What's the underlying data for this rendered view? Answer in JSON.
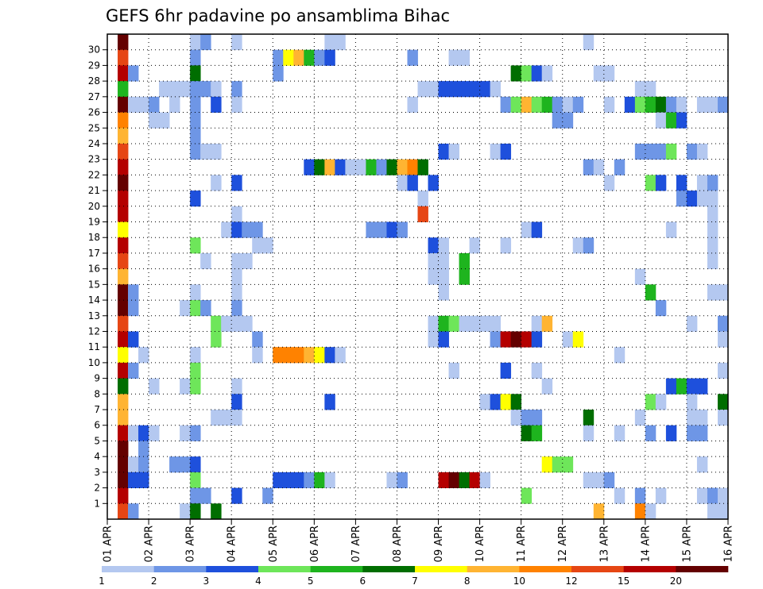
{
  "chart_data": {
    "type": "heatmap",
    "title": "GEFS 6hr padavine po ansamblima Bihac",
    "x_tick_labels": [
      "01 APR",
      "02 APR",
      "03 APR",
      "04 APR",
      "05 APR",
      "06 APR",
      "07 APR",
      "08 APR",
      "09 APR",
      "10 APR",
      "11 APR",
      "12 APR",
      "13 APR",
      "14 APR",
      "15 APR",
      "16 APR"
    ],
    "x_steps": 60,
    "y_ticks": [
      1,
      2,
      3,
      4,
      5,
      6,
      7,
      8,
      9,
      10,
      11,
      12,
      13,
      14,
      15,
      16,
      17,
      18,
      19,
      20,
      21,
      22,
      23,
      24,
      25,
      26,
      27,
      28,
      29,
      30
    ],
    "grid": true,
    "colorbar": {
      "colors": [
        "#b4c8f0",
        "#6e96e6",
        "#1e50dc",
        "#6ee65a",
        "#1eb41e",
        "#006e00",
        "#ffff00",
        "#ffb432",
        "#ff8200",
        "#e64614",
        "#b40000",
        "#640000"
      ],
      "labels": [
        "1",
        "2",
        "3",
        "4",
        "5",
        "6",
        "7",
        "8",
        "10",
        "12",
        "15",
        "20"
      ]
    },
    "data_cells": [
      [
        1,
        30,
        11
      ],
      [
        1,
        29,
        9
      ],
      [
        1,
        28,
        10
      ],
      [
        1,
        27,
        4
      ],
      [
        1,
        26,
        11
      ],
      [
        1,
        25,
        8
      ],
      [
        1,
        24,
        7
      ],
      [
        1,
        23,
        9
      ],
      [
        1,
        22,
        10
      ],
      [
        1,
        21,
        11
      ],
      [
        1,
        20,
        10
      ],
      [
        1,
        19,
        10
      ],
      [
        1,
        18,
        6
      ],
      [
        1,
        17,
        10
      ],
      [
        1,
        16,
        9
      ],
      [
        1,
        15,
        7
      ],
      [
        1,
        14,
        11
      ],
      [
        1,
        13,
        11
      ],
      [
        1,
        12,
        9
      ],
      [
        1,
        11,
        10
      ],
      [
        1,
        10,
        6
      ],
      [
        1,
        9,
        10
      ],
      [
        1,
        8,
        5
      ],
      [
        1,
        7,
        7
      ],
      [
        1,
        6,
        7
      ],
      [
        1,
        5,
        10
      ],
      [
        1,
        4,
        11
      ],
      [
        1,
        3,
        11
      ],
      [
        1,
        2,
        11
      ],
      [
        1,
        1,
        10
      ],
      [
        1,
        0,
        9
      ],
      [
        2,
        28,
        1
      ],
      [
        2,
        26,
        0
      ],
      [
        2,
        14,
        1
      ],
      [
        2,
        13,
        1
      ],
      [
        2,
        11,
        2
      ],
      [
        2,
        9,
        1
      ],
      [
        2,
        5,
        0
      ],
      [
        2,
        3,
        0
      ],
      [
        2,
        2,
        2
      ],
      [
        2,
        0,
        1
      ],
      [
        3,
        26,
        0
      ],
      [
        3,
        10,
        0
      ],
      [
        3,
        5,
        2
      ],
      [
        3,
        4,
        1
      ],
      [
        3,
        3,
        1
      ],
      [
        3,
        2,
        2
      ],
      [
        4,
        26,
        1
      ],
      [
        4,
        25,
        0
      ],
      [
        4,
        8,
        0
      ],
      [
        4,
        5,
        0
      ],
      [
        5,
        27,
        0
      ],
      [
        5,
        25,
        0
      ],
      [
        6,
        27,
        0
      ],
      [
        6,
        26,
        0
      ],
      [
        6,
        3,
        1
      ],
      [
        7,
        27,
        0
      ],
      [
        7,
        13,
        0
      ],
      [
        7,
        8,
        0
      ],
      [
        7,
        5,
        0
      ],
      [
        7,
        3,
        1
      ],
      [
        7,
        0,
        0
      ],
      [
        8,
        30,
        0
      ],
      [
        8,
        29,
        1
      ],
      [
        8,
        28,
        5
      ],
      [
        8,
        27,
        1
      ],
      [
        8,
        26,
        1
      ],
      [
        8,
        25,
        1
      ],
      [
        8,
        24,
        1
      ],
      [
        8,
        23,
        1
      ],
      [
        8,
        20,
        2
      ],
      [
        8,
        17,
        3
      ],
      [
        8,
        14,
        0
      ],
      [
        8,
        13,
        3
      ],
      [
        8,
        10,
        0
      ],
      [
        8,
        9,
        3
      ],
      [
        8,
        8,
        3
      ],
      [
        8,
        5,
        1
      ],
      [
        8,
        3,
        2
      ],
      [
        8,
        2,
        3
      ],
      [
        8,
        1,
        1
      ],
      [
        8,
        0,
        5
      ],
      [
        9,
        30,
        1
      ],
      [
        9,
        27,
        1
      ],
      [
        9,
        23,
        0
      ],
      [
        9,
        16,
        0
      ],
      [
        9,
        13,
        1
      ],
      [
        9,
        1,
        1
      ],
      [
        10,
        27,
        0
      ],
      [
        10,
        26,
        2
      ],
      [
        10,
        23,
        0
      ],
      [
        10,
        21,
        0
      ],
      [
        10,
        12,
        3
      ],
      [
        10,
        11,
        3
      ],
      [
        10,
        6,
        0
      ],
      [
        10,
        0,
        5
      ],
      [
        11,
        18,
        0
      ],
      [
        11,
        12,
        0
      ],
      [
        11,
        6,
        0
      ],
      [
        12,
        30,
        0
      ],
      [
        12,
        27,
        1
      ],
      [
        12,
        26,
        0
      ],
      [
        12,
        21,
        2
      ],
      [
        12,
        19,
        0
      ],
      [
        12,
        18,
        2
      ],
      [
        12,
        16,
        0
      ],
      [
        12,
        15,
        0
      ],
      [
        12,
        14,
        0
      ],
      [
        12,
        13,
        1
      ],
      [
        12,
        12,
        0
      ],
      [
        12,
        8,
        0
      ],
      [
        12,
        7,
        2
      ],
      [
        12,
        6,
        0
      ],
      [
        12,
        1,
        2
      ],
      [
        13,
        18,
        1
      ],
      [
        13,
        16,
        0
      ],
      [
        13,
        12,
        0
      ],
      [
        14,
        18,
        1
      ],
      [
        14,
        17,
        0
      ],
      [
        14,
        11,
        1
      ],
      [
        14,
        10,
        0
      ],
      [
        15,
        17,
        0
      ],
      [
        15,
        1,
        1
      ],
      [
        16,
        29,
        1
      ],
      [
        16,
        28,
        1
      ],
      [
        16,
        10,
        8
      ],
      [
        16,
        2,
        2
      ],
      [
        17,
        29,
        6
      ],
      [
        17,
        10,
        8
      ],
      [
        17,
        2,
        2
      ],
      [
        18,
        29,
        7
      ],
      [
        18,
        10,
        8
      ],
      [
        18,
        2,
        2
      ],
      [
        19,
        29,
        4
      ],
      [
        19,
        22,
        2
      ],
      [
        19,
        10,
        7
      ],
      [
        19,
        2,
        1
      ],
      [
        20,
        29,
        1
      ],
      [
        20,
        22,
        5
      ],
      [
        20,
        10,
        6
      ],
      [
        20,
        2,
        4
      ],
      [
        21,
        30,
        0
      ],
      [
        21,
        29,
        2
      ],
      [
        21,
        22,
        7
      ],
      [
        21,
        10,
        2
      ],
      [
        21,
        7,
        2
      ],
      [
        21,
        2,
        0
      ],
      [
        22,
        30,
        0
      ],
      [
        22,
        22,
        2
      ],
      [
        22,
        10,
        0
      ],
      [
        23,
        22,
        0
      ],
      [
        24,
        22,
        0
      ],
      [
        25,
        22,
        4
      ],
      [
        25,
        18,
        1
      ],
      [
        26,
        22,
        1
      ],
      [
        26,
        18,
        1
      ],
      [
        27,
        22,
        5
      ],
      [
        27,
        18,
        2
      ],
      [
        27,
        2,
        0
      ],
      [
        28,
        22,
        7
      ],
      [
        28,
        21,
        0
      ],
      [
        28,
        18,
        1
      ],
      [
        28,
        2,
        1
      ],
      [
        29,
        29,
        1
      ],
      [
        29,
        26,
        0
      ],
      [
        29,
        22,
        8
      ],
      [
        29,
        21,
        2
      ],
      [
        30,
        27,
        0
      ],
      [
        30,
        22,
        5
      ],
      [
        30,
        20,
        0
      ],
      [
        30,
        19,
        9
      ],
      [
        31,
        27,
        0
      ],
      [
        31,
        21,
        2
      ],
      [
        31,
        17,
        2
      ],
      [
        31,
        16,
        0
      ],
      [
        31,
        15,
        0
      ],
      [
        31,
        12,
        0
      ],
      [
        31,
        11,
        0
      ],
      [
        32,
        27,
        2
      ],
      [
        32,
        23,
        2
      ],
      [
        32,
        17,
        0
      ],
      [
        32,
        16,
        0
      ],
      [
        32,
        15,
        0
      ],
      [
        32,
        14,
        0
      ],
      [
        32,
        12,
        4
      ],
      [
        32,
        11,
        2
      ],
      [
        32,
        2,
        10
      ],
      [
        33,
        29,
        0
      ],
      [
        33,
        27,
        2
      ],
      [
        33,
        23,
        0
      ],
      [
        33,
        12,
        3
      ],
      [
        33,
        9,
        0
      ],
      [
        33,
        2,
        11
      ],
      [
        34,
        29,
        0
      ],
      [
        34,
        27,
        2
      ],
      [
        34,
        16,
        4
      ],
      [
        34,
        15,
        4
      ],
      [
        34,
        12,
        0
      ],
      [
        34,
        2,
        5
      ],
      [
        35,
        27,
        2
      ],
      [
        35,
        17,
        0
      ],
      [
        35,
        12,
        0
      ],
      [
        35,
        2,
        10
      ],
      [
        36,
        27,
        2
      ],
      [
        36,
        12,
        0
      ],
      [
        36,
        7,
        0
      ],
      [
        36,
        2,
        0
      ],
      [
        37,
        27,
        0
      ],
      [
        37,
        23,
        0
      ],
      [
        37,
        12,
        0
      ],
      [
        37,
        11,
        1
      ],
      [
        37,
        7,
        2
      ],
      [
        38,
        26,
        1
      ],
      [
        38,
        23,
        2
      ],
      [
        38,
        17,
        0
      ],
      [
        38,
        11,
        10
      ],
      [
        38,
        9,
        2
      ],
      [
        38,
        7,
        6
      ],
      [
        39,
        28,
        5
      ],
      [
        39,
        26,
        3
      ],
      [
        39,
        11,
        11
      ],
      [
        39,
        7,
        5
      ],
      [
        39,
        6,
        0
      ],
      [
        40,
        28,
        3
      ],
      [
        40,
        26,
        7
      ],
      [
        40,
        18,
        0
      ],
      [
        40,
        11,
        10
      ],
      [
        40,
        6,
        1
      ],
      [
        40,
        5,
        5
      ],
      [
        40,
        1,
        3
      ],
      [
        41,
        28,
        2
      ],
      [
        41,
        26,
        3
      ],
      [
        41,
        18,
        2
      ],
      [
        41,
        12,
        0
      ],
      [
        41,
        11,
        2
      ],
      [
        41,
        9,
        0
      ],
      [
        41,
        6,
        1
      ],
      [
        41,
        5,
        4
      ],
      [
        42,
        28,
        0
      ],
      [
        42,
        26,
        4
      ],
      [
        42,
        12,
        7
      ],
      [
        42,
        8,
        0
      ],
      [
        42,
        3,
        6
      ],
      [
        43,
        26,
        1
      ],
      [
        43,
        25,
        1
      ],
      [
        43,
        3,
        3
      ],
      [
        44,
        26,
        0
      ],
      [
        44,
        25,
        1
      ],
      [
        44,
        11,
        0
      ],
      [
        44,
        3,
        3
      ],
      [
        45,
        26,
        1
      ],
      [
        45,
        17,
        0
      ],
      [
        45,
        11,
        6
      ],
      [
        46,
        30,
        0
      ],
      [
        46,
        22,
        1
      ],
      [
        46,
        17,
        1
      ],
      [
        46,
        6,
        5
      ],
      [
        46,
        5,
        0
      ],
      [
        46,
        2,
        0
      ],
      [
        47,
        28,
        0
      ],
      [
        47,
        22,
        0
      ],
      [
        47,
        2,
        0
      ],
      [
        47,
        0,
        7
      ],
      [
        48,
        28,
        0
      ],
      [
        48,
        26,
        0
      ],
      [
        48,
        21,
        0
      ],
      [
        48,
        2,
        1
      ],
      [
        49,
        22,
        1
      ],
      [
        49,
        10,
        0
      ],
      [
        49,
        5,
        0
      ],
      [
        49,
        1,
        0
      ],
      [
        50,
        26,
        2
      ],
      [
        51,
        27,
        0
      ],
      [
        51,
        26,
        3
      ],
      [
        51,
        23,
        1
      ],
      [
        51,
        15,
        0
      ],
      [
        51,
        6,
        0
      ],
      [
        51,
        1,
        1
      ],
      [
        51,
        0,
        8
      ],
      [
        52,
        27,
        0
      ],
      [
        52,
        26,
        4
      ],
      [
        52,
        23,
        1
      ],
      [
        52,
        21,
        3
      ],
      [
        52,
        14,
        4
      ],
      [
        52,
        7,
        3
      ],
      [
        52,
        5,
        1
      ],
      [
        52,
        0,
        0
      ],
      [
        53,
        26,
        5
      ],
      [
        53,
        25,
        0
      ],
      [
        53,
        23,
        1
      ],
      [
        53,
        21,
        2
      ],
      [
        53,
        13,
        1
      ],
      [
        53,
        7,
        0
      ],
      [
        53,
        1,
        0
      ],
      [
        54,
        26,
        1
      ],
      [
        54,
        25,
        4
      ],
      [
        54,
        23,
        3
      ],
      [
        54,
        18,
        0
      ],
      [
        54,
        8,
        2
      ],
      [
        54,
        5,
        2
      ],
      [
        55,
        26,
        0
      ],
      [
        55,
        25,
        2
      ],
      [
        55,
        21,
        2
      ],
      [
        55,
        20,
        1
      ],
      [
        55,
        8,
        4
      ],
      [
        56,
        23,
        1
      ],
      [
        56,
        20,
        2
      ],
      [
        56,
        6,
        0
      ],
      [
        56,
        5,
        1
      ],
      [
        56,
        8,
        2
      ],
      [
        56,
        7,
        0
      ],
      [
        56,
        12,
        0
      ],
      [
        57,
        26,
        0
      ],
      [
        57,
        23,
        0
      ],
      [
        57,
        21,
        0
      ],
      [
        57,
        20,
        0
      ],
      [
        57,
        8,
        2
      ],
      [
        57,
        6,
        0
      ],
      [
        57,
        5,
        1
      ],
      [
        57,
        3,
        0
      ],
      [
        57,
        1,
        0
      ],
      [
        58,
        26,
        0
      ],
      [
        58,
        21,
        1
      ],
      [
        58,
        20,
        0
      ],
      [
        58,
        19,
        0
      ],
      [
        58,
        18,
        0
      ],
      [
        58,
        17,
        0
      ],
      [
        58,
        16,
        0
      ],
      [
        58,
        14,
        0
      ],
      [
        58,
        1,
        1
      ],
      [
        58,
        0,
        0
      ],
      [
        59,
        26,
        1
      ],
      [
        59,
        14,
        0
      ],
      [
        59,
        12,
        1
      ],
      [
        59,
        11,
        0
      ],
      [
        59,
        9,
        0
      ],
      [
        59,
        7,
        5
      ],
      [
        59,
        6,
        0
      ],
      [
        59,
        1,
        0
      ],
      [
        59,
        0,
        0
      ]
    ]
  }
}
